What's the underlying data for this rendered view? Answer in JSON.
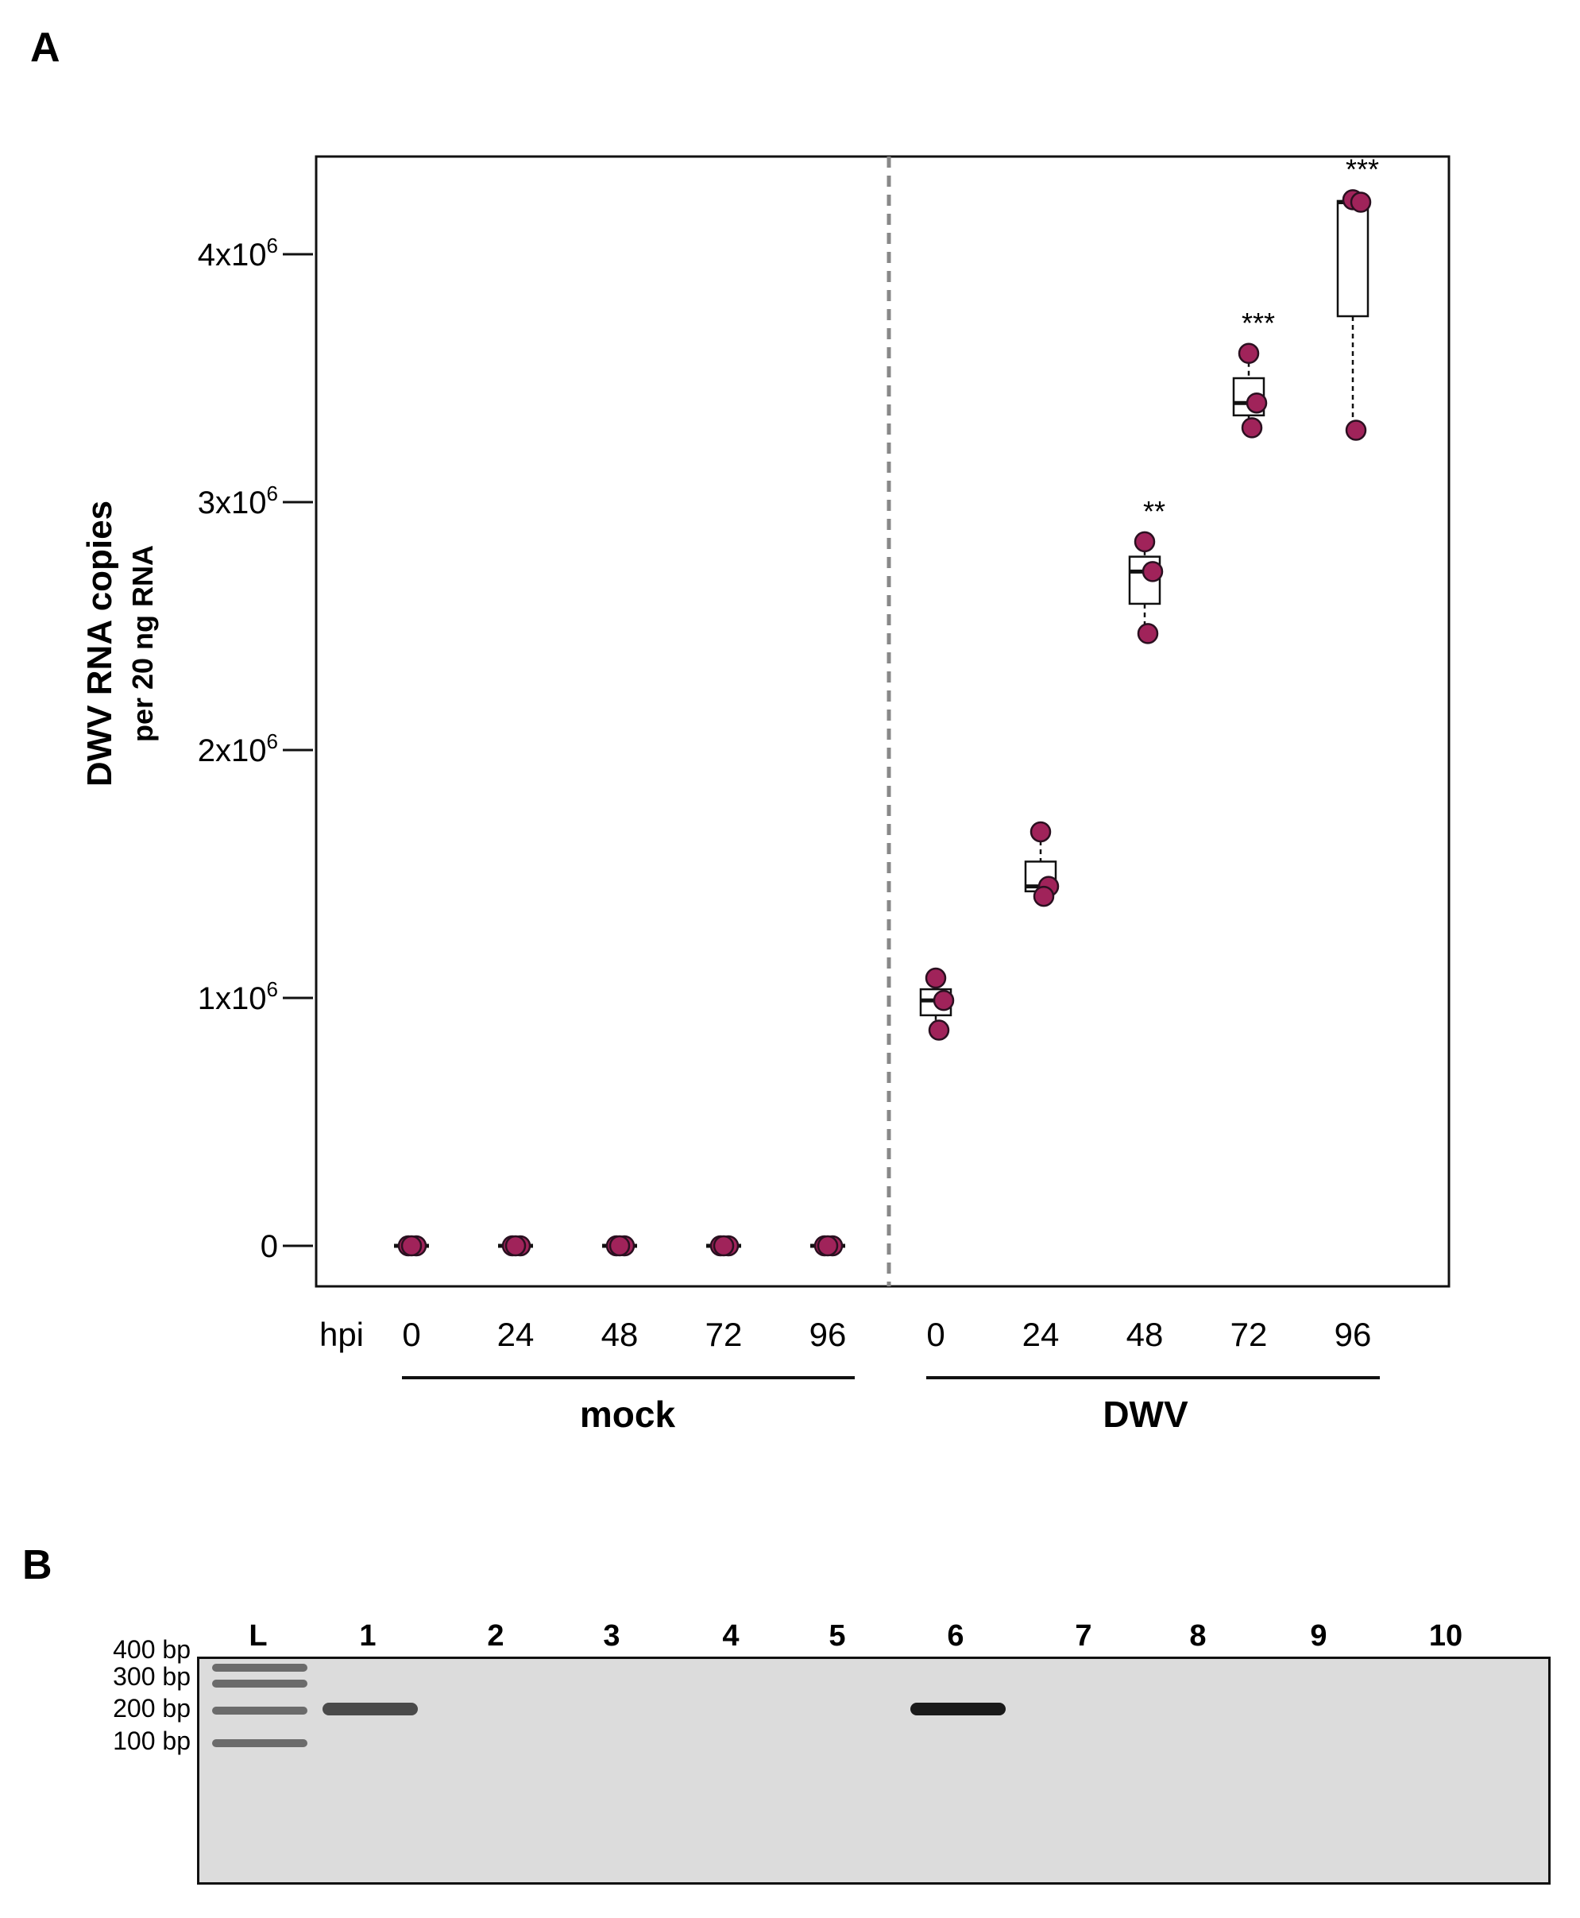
{
  "panels": {
    "a_label": "A",
    "b_label": "B"
  },
  "colors": {
    "point_fill": "#a0235a",
    "point_stroke": "#2a1020",
    "divider": "#888888",
    "gel_bg": "#dcdcdc",
    "band": "#1a1a1a",
    "ladder": "#3a3a3a"
  },
  "chart_data": {
    "type": "box",
    "ylabel_main": "DWV RNA copies",
    "ylabel_sub": "per 20 ng RNA",
    "ylim": [
      -160000,
      4400000
    ],
    "yticks": [
      {
        "value": 0,
        "label": "0",
        "exp": ""
      },
      {
        "value": 1000000,
        "label": "1x10",
        "exp": "6"
      },
      {
        "value": 2000000,
        "label": "2x10",
        "exp": "6"
      },
      {
        "value": 3000000,
        "label": "3x10",
        "exp": "6"
      },
      {
        "value": 4000000,
        "label": "4x10",
        "exp": "6"
      }
    ],
    "x_axis_prefix": "hpi",
    "group_labels": [
      "mock",
      "DWV"
    ],
    "categories": [
      "0",
      "24",
      "48",
      "72",
      "96",
      "0",
      "24",
      "48",
      "72",
      "96"
    ],
    "series": [
      {
        "group": "mock",
        "hpi": "0",
        "points": [
          0,
          0,
          0
        ],
        "box": {
          "q1": 0,
          "median": 0,
          "q3": 0,
          "min": 0,
          "max": 0
        },
        "sig": ""
      },
      {
        "group": "mock",
        "hpi": "24",
        "points": [
          0,
          0,
          0
        ],
        "box": {
          "q1": 0,
          "median": 0,
          "q3": 0,
          "min": 0,
          "max": 0
        },
        "sig": ""
      },
      {
        "group": "mock",
        "hpi": "48",
        "points": [
          0,
          0,
          0
        ],
        "box": {
          "q1": 0,
          "median": 0,
          "q3": 0,
          "min": 0,
          "max": 0
        },
        "sig": ""
      },
      {
        "group": "mock",
        "hpi": "72",
        "points": [
          0,
          0,
          0
        ],
        "box": {
          "q1": 0,
          "median": 0,
          "q3": 0,
          "min": 0,
          "max": 0
        },
        "sig": ""
      },
      {
        "group": "mock",
        "hpi": "96",
        "points": [
          0,
          0,
          0
        ],
        "box": {
          "q1": 0,
          "median": 0,
          "q3": 0,
          "min": 0,
          "max": 0
        },
        "sig": ""
      },
      {
        "group": "DWV",
        "hpi": "0",
        "points": [
          1080000,
          990000,
          870000
        ],
        "box": {
          "q1": 930000,
          "median": 990000,
          "q3": 1035000,
          "min": 870000,
          "max": 1080000
        },
        "sig": ""
      },
      {
        "group": "DWV",
        "hpi": "24",
        "points": [
          1670000,
          1450000,
          1410000
        ],
        "box": {
          "q1": 1430000,
          "median": 1450000,
          "q3": 1550000,
          "min": 1410000,
          "max": 1670000
        },
        "sig": ""
      },
      {
        "group": "DWV",
        "hpi": "48",
        "points": [
          2840000,
          2720000,
          2470000
        ],
        "box": {
          "q1": 2590000,
          "median": 2720000,
          "q3": 2780000,
          "min": 2470000,
          "max": 2840000
        },
        "sig": "**"
      },
      {
        "group": "DWV",
        "hpi": "72",
        "points": [
          3600000,
          3400000,
          3300000
        ],
        "box": {
          "q1": 3350000,
          "median": 3400000,
          "q3": 3500000,
          "min": 3300000,
          "max": 3600000
        },
        "sig": "***"
      },
      {
        "group": "DWV",
        "hpi": "96",
        "points": [
          4220000,
          4210000,
          3290000
        ],
        "box": {
          "q1": 3750000,
          "median": 4210000,
          "q3": 4215000,
          "min": 3290000,
          "max": 4220000
        },
        "sig": "***"
      }
    ]
  },
  "gel": {
    "lanes": [
      "L",
      "1",
      "2",
      "3",
      "4",
      "5",
      "6",
      "7",
      "8",
      "9",
      "10"
    ],
    "ladder_sizes": [
      "400 bp",
      "300 bp",
      "200 bp",
      "100 bp"
    ],
    "bands": [
      {
        "lane": "1",
        "size_bp": 200,
        "intensity": 0.75
      },
      {
        "lane": "6",
        "size_bp": 200,
        "intensity": 1.0
      }
    ]
  }
}
